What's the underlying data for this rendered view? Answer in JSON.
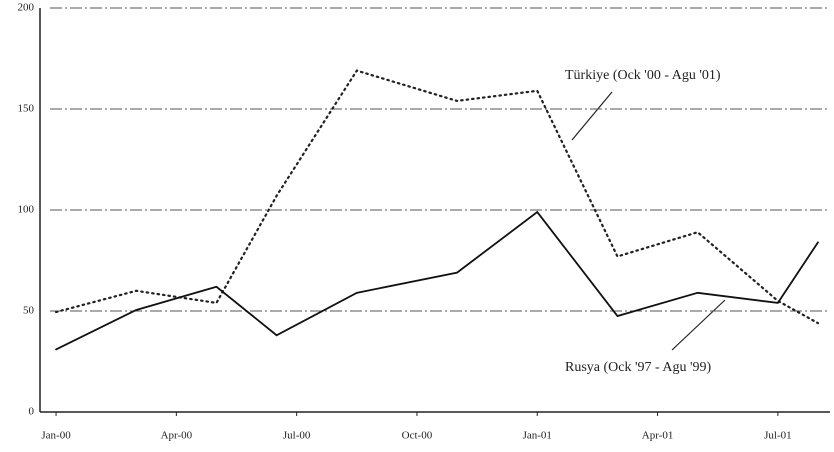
{
  "chart_data": {
    "type": "line",
    "x": [
      0,
      2,
      4,
      5.5,
      7.5,
      10,
      12,
      14,
      16,
      18,
      19
    ],
    "xlim": [
      -0.4,
      19.3
    ],
    "xticks": [
      {
        "value": 0,
        "label": "Jan-00"
      },
      {
        "value": 3,
        "label": "Apr-00"
      },
      {
        "value": 6,
        "label": "Jul-00"
      },
      {
        "value": 9,
        "label": "Oct-00"
      },
      {
        "value": 12,
        "label": "Jan-01"
      },
      {
        "value": 15,
        "label": "Apr-01"
      },
      {
        "value": 18,
        "label": "Jul-01"
      }
    ],
    "ylim": [
      0,
      200
    ],
    "yticks": [
      0,
      50,
      100,
      150,
      200
    ],
    "grid": true,
    "series": [
      {
        "name": "Türkiye (Ock '00 - Agu '01)",
        "color": "#222222",
        "dash": "dotted",
        "values": [
          49.5,
          60,
          54,
          107,
          169,
          154,
          159,
          77,
          89,
          55,
          44
        ]
      },
      {
        "name": "Rusya (Ock '97 - Agu '99)",
        "color": "#111111",
        "dash": "solid",
        "values": [
          31,
          50.5,
          62,
          38,
          59,
          69,
          99,
          47.5,
          59,
          54,
          84
        ]
      }
    ]
  }
}
